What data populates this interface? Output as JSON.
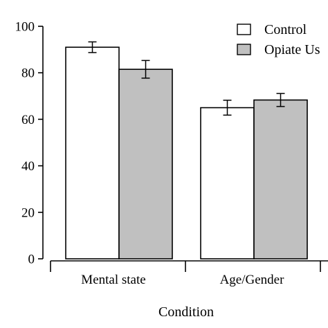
{
  "chart_data": {
    "type": "bar",
    "title": "",
    "xlabel": "Condition",
    "ylabel": "",
    "categories": [
      "Mental state",
      "Age/Gender"
    ],
    "series": [
      {
        "name": "Control",
        "values": [
          91,
          65
        ],
        "errors": [
          2.3,
          3.2
        ],
        "color": "#ffffff"
      },
      {
        "name": "Opiate Us",
        "values": [
          81.5,
          68.3
        ],
        "errors": [
          3.8,
          2.8
        ],
        "color": "#c0c0c0"
      }
    ],
    "ylim": [
      0,
      100
    ],
    "yticks": [
      0,
      20,
      40,
      60,
      80,
      100
    ],
    "legend_position": "top-right",
    "grid": false
  }
}
